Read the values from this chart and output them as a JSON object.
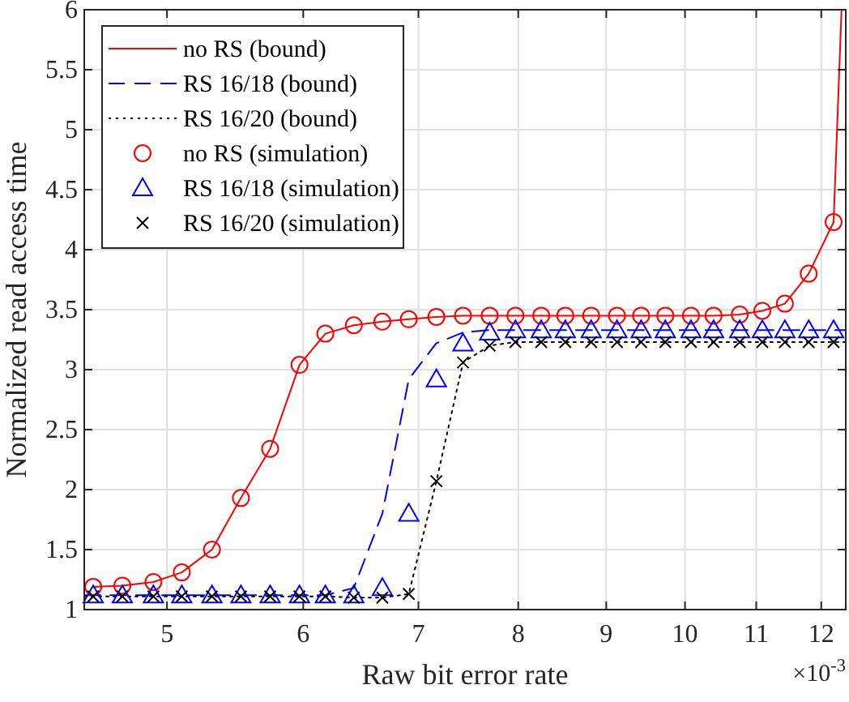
{
  "chart_data": {
    "type": "line",
    "xlabel": "Raw bit error rate",
    "ylabel": "Normalized read access time",
    "log": "x",
    "xlim": [
      4.476,
      12.4
    ],
    "xticks": [
      5,
      6,
      7,
      8,
      9,
      10,
      11,
      12
    ],
    "ylim": [
      1,
      6
    ],
    "yticks": [
      1,
      1.5,
      2,
      2.5,
      3,
      3.5,
      4,
      4.5,
      5,
      5.5,
      6
    ],
    "grid": true,
    "legend": "top left",
    "annotations": [
      "×10$^{-3}$"
    ],
    "x": [
      4.53,
      4.71,
      4.91,
      5.1,
      5.31,
      5.52,
      5.74,
      5.97,
      6.18,
      6.42,
      6.67,
      6.91,
      7.17,
      7.43,
      7.7,
      7.97,
      8.25,
      8.52,
      8.82,
      9.13,
      9.43,
      9.74,
      10.08,
      10.39,
      10.76,
      11.09,
      11.43,
      11.8,
      12.2
    ],
    "series": [
      {
        "name": "no RS (bound)",
        "color": "#ff0000",
        "marker": "none",
        "line_style": "solid",
        "x": [
          4.53,
          4.71,
          4.91,
          5.1,
          5.31,
          5.52,
          5.74,
          5.97,
          6.18,
          6.42,
          6.67,
          6.91,
          7.17,
          7.43,
          7.7,
          7.97,
          8.25,
          8.52,
          8.82,
          9.13,
          9.43,
          9.74,
          10.08,
          10.39,
          10.76,
          11.09,
          11.43,
          11.8,
          12.2,
          12.33
        ],
        "values": [
          1.19,
          1.2,
          1.23,
          1.31,
          1.5,
          1.93,
          2.34,
          3.04,
          3.3,
          3.37,
          3.4,
          3.42,
          3.44,
          3.45,
          3.45,
          3.45,
          3.45,
          3.45,
          3.45,
          3.45,
          3.45,
          3.45,
          3.45,
          3.45,
          3.46,
          3.49,
          3.55,
          3.8,
          4.23,
          6
        ]
      },
      {
        "name": "RS 16/18 (bound)",
        "color": "#0000ff",
        "marker": "none",
        "line_style": "dashed",
        "x": [
          4.476,
          4.53,
          4.71,
          4.91,
          5.1,
          5.31,
          5.52,
          5.74,
          5.97,
          6.18,
          6.42,
          6.67,
          6.91,
          7.17,
          7.43,
          7.7,
          12.4
        ],
        "values": [
          1.12,
          1.12,
          1.12,
          1.12,
          1.12,
          1.12,
          1.12,
          1.12,
          1.12,
          1.12,
          1.18,
          1.8,
          2.92,
          3.22,
          3.31,
          3.33,
          3.33
        ]
      },
      {
        "name": "RS 16/20 (bound)",
        "color": "#000000",
        "marker": "none",
        "line_style": "dotted",
        "x": [
          4.476,
          4.53,
          6.18,
          6.42,
          6.67,
          6.91,
          7.17,
          7.43,
          7.7,
          7.97,
          12.4
        ],
        "values": [
          1.11,
          1.11,
          1.11,
          1.1,
          1.1,
          1.13,
          2.07,
          3.06,
          3.2,
          3.23,
          3.23
        ]
      },
      {
        "name": "no RS (simulation)",
        "type": "scatter",
        "color": "#ff0000",
        "marker": "circle",
        "values": [
          1.19,
          1.2,
          1.23,
          1.31,
          1.5,
          1.93,
          2.34,
          3.04,
          3.3,
          3.37,
          3.4,
          3.42,
          3.44,
          3.45,
          3.45,
          3.45,
          3.45,
          3.45,
          3.45,
          3.45,
          3.45,
          3.45,
          3.45,
          3.45,
          3.46,
          3.49,
          3.55,
          3.8,
          4.23
        ]
      },
      {
        "name": "RS 16/18 (simulation)",
        "type": "scatter",
        "color": "#0000ff",
        "marker": "triangle",
        "values": [
          1.12,
          1.12,
          1.12,
          1.12,
          1.12,
          1.12,
          1.12,
          1.12,
          1.12,
          1.12,
          1.18,
          1.8,
          2.92,
          3.22,
          3.31,
          3.33,
          3.33,
          3.33,
          3.33,
          3.33,
          3.33,
          3.33,
          3.33,
          3.33,
          3.33,
          3.33,
          3.33,
          3.33,
          3.33
        ]
      },
      {
        "name": "RS 16/20 (simulation)",
        "type": "scatter",
        "color": "#000000",
        "marker": "cross",
        "values": [
          1.11,
          1.11,
          1.11,
          1.11,
          1.11,
          1.11,
          1.11,
          1.11,
          1.11,
          1.1,
          1.1,
          1.13,
          2.07,
          3.06,
          3.2,
          3.23,
          3.23,
          3.23,
          3.23,
          3.23,
          3.23,
          3.23,
          3.23,
          3.23,
          3.23,
          3.23,
          3.23,
          3.23,
          3.23
        ]
      }
    ]
  }
}
